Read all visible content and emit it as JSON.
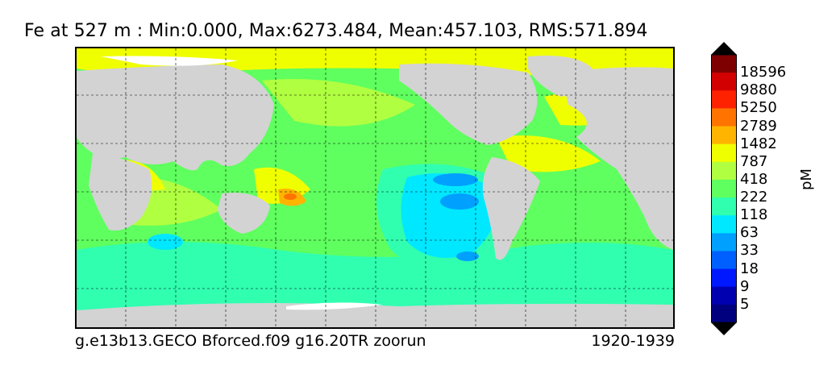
{
  "title": "Fe at 527 m : Min:0.000, Max:6273.484, Mean:457.103, RMS:571.894",
  "caption_left": "g.e13b13.GECO Bforced.f09 g16.20TR zoorun",
  "caption_right": "1920-1939",
  "colorbar": {
    "units": "pM",
    "labels": [
      "18596",
      "9880",
      "5250",
      "2789",
      "1482",
      "787",
      "418",
      "222",
      "118",
      "63",
      "33",
      "18",
      "9",
      "5"
    ],
    "colors": [
      "#7f0000",
      "#d20000",
      "#ff2200",
      "#ff7400",
      "#ffb400",
      "#f0ff00",
      "#b0ff40",
      "#5fff5f",
      "#30ffb0",
      "#00e8ff",
      "#00a0ff",
      "#0060ff",
      "#0018ff",
      "#0000b0",
      "#00007f"
    ]
  },
  "map_colors": {
    "land": "#d3d3d3",
    "ice": "#ffffff",
    "deep_low": "#00a0ff",
    "low": "#00e8ff",
    "mid_low": "#30ffb0",
    "mid": "#5fff5f",
    "mid_high": "#b0ff40",
    "high": "#f0ff00",
    "very_high": "#ffb400",
    "peak": "#ff7400"
  }
}
